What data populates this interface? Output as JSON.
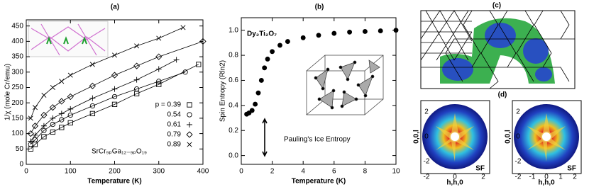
{
  "chart_data": [
    {
      "type": "line",
      "title": "(a)",
      "xlabel": "Temperature (K)",
      "ylabel": "1/χ (mole Cr/emu)",
      "annotation": "SrCr₉ₚGa₁₂₋₉ₚO₁₉",
      "xlim": [
        0,
        400
      ],
      "ylim": [
        0,
        470
      ],
      "xticks": [
        0,
        100,
        200,
        300,
        400
      ],
      "yticks": [
        0,
        50,
        100,
        150,
        200,
        250,
        300,
        350,
        400,
        450
      ],
      "series": [
        {
          "name": "p = 0.39",
          "marker": "square",
          "color": "#000",
          "x": [
            10,
            20,
            40,
            60,
            80,
            100,
            150,
            200,
            250,
            300,
            390
          ],
          "values": [
            50,
            65,
            90,
            105,
            120,
            135,
            165,
            195,
            230,
            260,
            325
          ]
        },
        {
          "name": "0.54",
          "marker": "circle",
          "color": "#000",
          "x": [
            10,
            20,
            40,
            60,
            80,
            100,
            150,
            200,
            250,
            300,
            360
          ],
          "values": [
            65,
            80,
            110,
            130,
            145,
            160,
            190,
            220,
            245,
            270,
            300
          ]
        },
        {
          "name": "0.61",
          "marker": "plus",
          "color": "#000",
          "x": [
            10,
            20,
            40,
            60,
            80,
            100,
            150,
            200,
            250,
            300,
            340
          ],
          "values": [
            75,
            95,
            125,
            150,
            165,
            180,
            215,
            245,
            275,
            310,
            340
          ]
        },
        {
          "name": "0.79",
          "marker": "diamond",
          "color": "#000",
          "x": [
            10,
            20,
            40,
            60,
            80,
            100,
            150,
            200,
            250,
            300,
            400
          ],
          "values": [
            100,
            125,
            160,
            185,
            205,
            220,
            255,
            290,
            320,
            350,
            400
          ]
        },
        {
          "name": "0.89",
          "marker": "cross",
          "color": "#000",
          "x": [
            10,
            20,
            40,
            60,
            80,
            100,
            150,
            200,
            250,
            300,
            355
          ],
          "values": [
            150,
            185,
            225,
            250,
            270,
            290,
            325,
            355,
            385,
            410,
            445
          ]
        }
      ]
    },
    {
      "type": "scatter",
      "title": "(b)",
      "subtitle": "Dy₂Ti₂O₇",
      "xlabel": "Temperature (K)",
      "ylabel": "Spin Entropy (Rln2)",
      "annotation": "Pauling's Ice Entropy",
      "xlim": [
        0,
        10
      ],
      "ylim": [
        -0.07,
        1.1
      ],
      "xticks": [
        0,
        2,
        4,
        6,
        8,
        10
      ],
      "yticks": [
        {
          "value": 0,
          "label": "0.0"
        },
        0.2,
        0.4,
        0.6,
        0.8,
        {
          "value": 1,
          "label": "1.0"
        }
      ],
      "series": [
        {
          "marker": "dot",
          "color": "#000",
          "x": [
            0.35,
            0.5,
            0.7,
            0.9,
            1.1,
            1.3,
            1.5,
            1.7,
            2.0,
            2.5,
            3,
            4,
            5,
            6,
            7,
            8,
            9,
            10
          ],
          "values": [
            0.33,
            0.34,
            0.36,
            0.41,
            0.5,
            0.6,
            0.7,
            0.77,
            0.83,
            0.88,
            0.91,
            0.94,
            0.96,
            0.975,
            0.985,
            0.99,
            0.995,
            1.0
          ]
        }
      ]
    }
  ],
  "panels": {
    "c": {
      "label": "(c)"
    },
    "d": {
      "label": "(d)",
      "left": {
        "xticks": [
          "-2",
          "0",
          "2"
        ],
        "yticks": [
          "2",
          "0",
          "-2"
        ],
        "xlabel": "h,h,0",
        "ylabel": "0,0,l",
        "tag": "SF"
      },
      "right": {
        "xticks": [
          "-2",
          "-1",
          "0",
          "1",
          "2"
        ],
        "yticks": [
          "2",
          "0",
          "-2"
        ],
        "xlabel": "h,h,0",
        "ylabel": "0,0,l",
        "tag": "SF"
      }
    }
  }
}
